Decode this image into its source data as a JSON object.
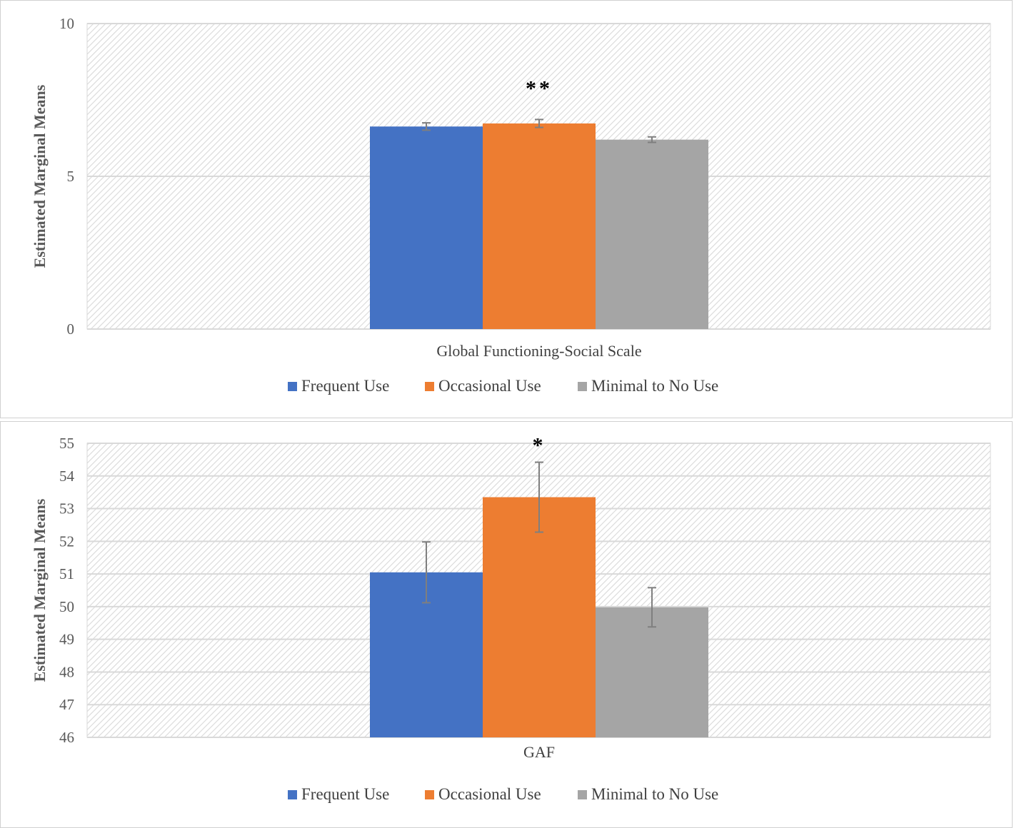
{
  "colors": {
    "frequent": "#4472C4",
    "occasional": "#ED7D31",
    "minimal": "#A5A5A5",
    "plot_background_hatch": "#d9d9d9",
    "gridline": "#d9d9d9",
    "error_bar": "#7f7f7f"
  },
  "legend": [
    "Frequent Use",
    "Occasional Use",
    "Minimal to No Use"
  ],
  "chart_data": [
    {
      "type": "bar",
      "title": "",
      "xlabel": "",
      "ylabel": "Estimated Marginal Means",
      "categories": [
        "Global Functioning-Social Scale"
      ],
      "series": [
        {
          "name": "Frequent Use",
          "values": [
            6.63
          ],
          "error": [
            0.12
          ]
        },
        {
          "name": "Occasional Use",
          "values": [
            6.73
          ],
          "error": [
            0.13
          ]
        },
        {
          "name": "Minimal to No Use",
          "values": [
            6.2
          ],
          "error": [
            0.09
          ]
        }
      ],
      "ylim": [
        0,
        10
      ],
      "yticks": [
        "0",
        "5",
        "10"
      ],
      "grid": true,
      "legend_position": "bottom",
      "annotations": [
        {
          "text": "**",
          "series": "Occasional Use"
        }
      ]
    },
    {
      "type": "bar",
      "title": "",
      "xlabel": "",
      "ylabel": "Estimated Marginal Means",
      "categories": [
        "GAF"
      ],
      "series": [
        {
          "name": "Frequent Use",
          "values": [
            51.05
          ],
          "error": [
            0.93
          ]
        },
        {
          "name": "Occasional Use",
          "values": [
            53.35
          ],
          "error": [
            1.07
          ]
        },
        {
          "name": "Minimal to No Use",
          "values": [
            49.98
          ],
          "error": [
            0.6
          ]
        }
      ],
      "ylim": [
        46,
        55
      ],
      "yticks": [
        "46",
        "47",
        "48",
        "49",
        "50",
        "51",
        "52",
        "53",
        "54",
        "55"
      ],
      "grid": true,
      "legend_position": "bottom",
      "annotations": [
        {
          "text": "*",
          "series": "Occasional Use"
        }
      ]
    }
  ]
}
